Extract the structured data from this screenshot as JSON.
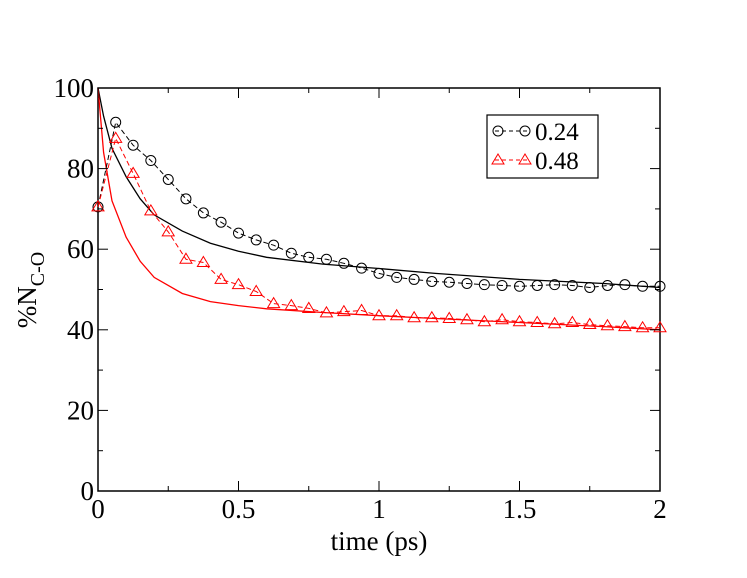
{
  "chart_data": {
    "type": "line",
    "title": "",
    "xlabel": "time (ps)",
    "ylabel_main": "%N",
    "ylabel_sub": "C-O",
    "xlim": [
      0,
      2
    ],
    "ylim": [
      0,
      100
    ],
    "x_ticks": [
      0,
      0.5,
      1,
      1.5,
      2
    ],
    "x_tick_labels": [
      "0",
      "0.5",
      "1",
      "1.5",
      "2"
    ],
    "y_ticks": [
      0,
      20,
      40,
      60,
      80,
      100
    ],
    "y_tick_labels": [
      "0",
      "20",
      "40",
      "60",
      "80",
      "100"
    ],
    "grid": false,
    "legend_position": "top-right",
    "series": [
      {
        "name": "0.24",
        "color": "#000000",
        "marker": "circle",
        "line_style": "dashed",
        "x": [
          0,
          0.063,
          0.125,
          0.188,
          0.25,
          0.313,
          0.375,
          0.438,
          0.5,
          0.563,
          0.625,
          0.688,
          0.75,
          0.813,
          0.875,
          0.938,
          1.0,
          1.063,
          1.125,
          1.188,
          1.25,
          1.313,
          1.375,
          1.438,
          1.5,
          1.563,
          1.625,
          1.688,
          1.75,
          1.813,
          1.875,
          1.938,
          2.0
        ],
        "values": [
          70.5,
          91.5,
          85.8,
          82.0,
          77.3,
          72.5,
          69.0,
          66.7,
          64.0,
          62.3,
          61.0,
          59.0,
          58.0,
          57.5,
          56.5,
          55.3,
          54.0,
          53.0,
          52.5,
          52.0,
          51.8,
          51.5,
          51.2,
          51.0,
          50.8,
          51.0,
          51.2,
          51.0,
          50.5,
          51.0,
          51.2,
          50.8,
          50.8
        ]
      },
      {
        "name": "0.48",
        "color": "#ff0000",
        "marker": "triangle",
        "line_style": "dashed",
        "x": [
          0,
          0.063,
          0.125,
          0.188,
          0.25,
          0.313,
          0.375,
          0.438,
          0.5,
          0.563,
          0.625,
          0.688,
          0.75,
          0.813,
          0.875,
          0.938,
          1.0,
          1.063,
          1.125,
          1.188,
          1.25,
          1.313,
          1.375,
          1.438,
          1.5,
          1.563,
          1.625,
          1.688,
          1.75,
          1.813,
          1.875,
          1.938,
          2.0
        ],
        "values": [
          70.5,
          87.5,
          78.8,
          69.5,
          64.3,
          57.5,
          56.7,
          52.5,
          51.2,
          49.5,
          46.5,
          46.0,
          45.3,
          44.2,
          44.5,
          44.8,
          43.5,
          43.5,
          43.0,
          43.0,
          42.8,
          42.5,
          42.0,
          42.5,
          42.0,
          41.8,
          41.5,
          41.8,
          41.3,
          41.0,
          40.8,
          40.5,
          40.5
        ]
      }
    ],
    "fit_curves": [
      {
        "color": "#000000",
        "x": [
          0,
          0.02,
          0.05,
          0.1,
          0.15,
          0.2,
          0.3,
          0.4,
          0.5,
          0.6,
          0.8,
          1.0,
          1.2,
          1.5,
          1.8,
          2.0
        ],
        "values": [
          100,
          93,
          85,
          78,
          72.5,
          68.5,
          64.5,
          61.5,
          59.5,
          58.0,
          56.3,
          55.2,
          54.0,
          52.5,
          51.5,
          50.5
        ]
      },
      {
        "color": "#ff0000",
        "x": [
          0,
          0.02,
          0.05,
          0.1,
          0.15,
          0.2,
          0.3,
          0.4,
          0.5,
          0.6,
          0.8,
          1.0,
          1.2,
          1.5,
          1.8,
          2.0
        ],
        "values": [
          100,
          84,
          72,
          63,
          57,
          53,
          49,
          47,
          46,
          45.2,
          44.3,
          43.5,
          42.8,
          41.8,
          40.8,
          40.0
        ]
      }
    ]
  }
}
